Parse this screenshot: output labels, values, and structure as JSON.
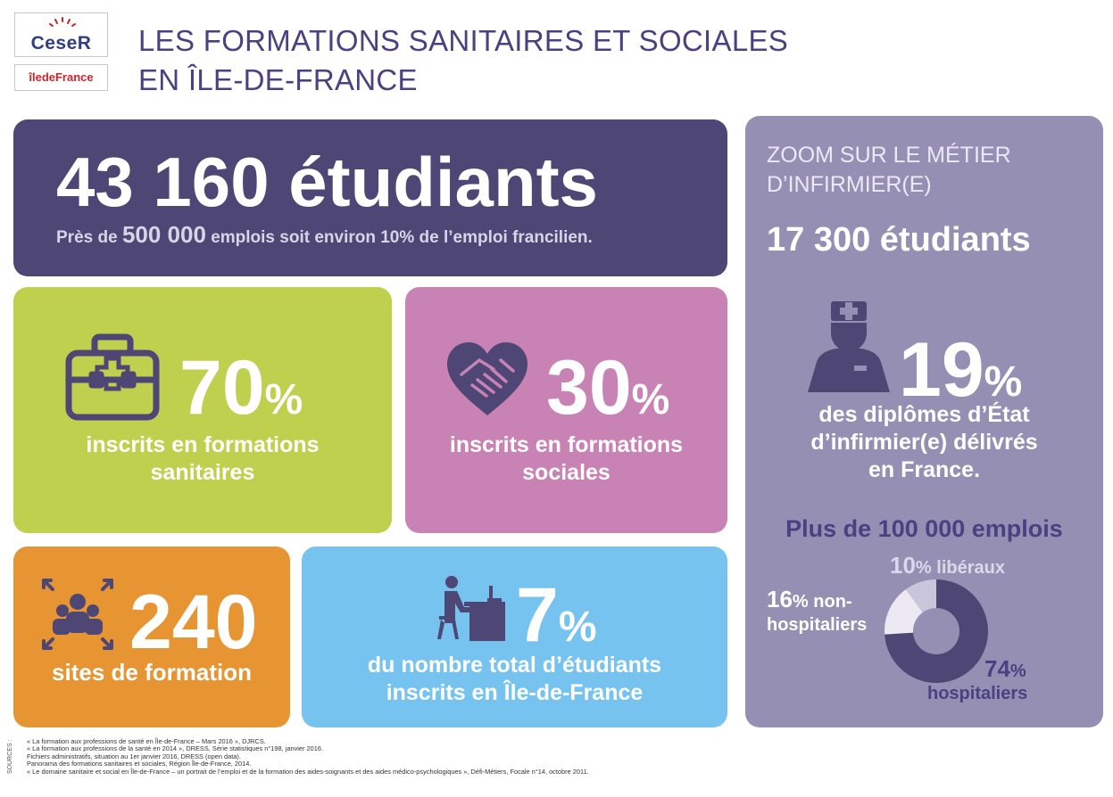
{
  "logos": {
    "ceser": "CeseR",
    "iledefrance": "îledeFrance"
  },
  "header": {
    "title_line1": "LES FORMATIONS SANITAIRES ET SOCIALES",
    "title_line2": "EN ÎLE-DE-FRANCE"
  },
  "top_card": {
    "headline": "43 160 étudiants",
    "sub_prefix": "Près de ",
    "sub_highlight": "500 000",
    "sub_suffix": " emplois soit environ 10% de l’emploi francilien."
  },
  "sanitaires": {
    "value": "70",
    "unit": "%",
    "label_line1": "inscrits en formations",
    "label_line2": "sanitaires",
    "icon": "medical-kit-icon"
  },
  "sociales": {
    "value": "30",
    "unit": "%",
    "label_line1": "inscrits en formations",
    "label_line2": "sociales",
    "icon": "heart-handshake-icon"
  },
  "sites": {
    "value": "240",
    "label": "sites de formation",
    "icon": "group-people-icon"
  },
  "total": {
    "value": "7",
    "unit": "%",
    "label_line1": "du nombre total d’étudiants",
    "label_line2": "inscrits en Île-de-France",
    "icon": "person-at-desk-icon"
  },
  "zoom": {
    "title_line1": "ZOOM SUR LE MÉTIER",
    "title_line2": "D’INFIRMIER(E)",
    "students": "17 300 étudiants",
    "pct_value": "19",
    "pct_unit": "%",
    "desc_line1": "des diplômes d’État",
    "desc_line2": "d’infirmier(e) délivrés",
    "desc_line3": "en France.",
    "employment": "Plus de 100 000 emplois",
    "icon": "nurse-icon"
  },
  "chart_data": {
    "type": "pie",
    "title": "Plus de 100 000 emplois",
    "slices": [
      {
        "label": "hospitaliers",
        "value": 74,
        "color": "#4e4674"
      },
      {
        "label": "non-hospitaliers",
        "value": 16,
        "color": "#ece9f3"
      },
      {
        "label": "libéraux",
        "value": 10,
        "color": "#c9c5db"
      }
    ]
  },
  "donut": {
    "lib_pct": "10",
    "lib_unit": "%",
    "lib_label": " libéraux",
    "non_pct": "16",
    "non_unit": "%",
    "non_label1": " non-",
    "non_label2": "hospitaliers",
    "hosp_pct": "74",
    "hosp_unit": "%",
    "hosp_label": "hospitaliers"
  },
  "sources": {
    "tag": "SOURCES :",
    "lines": [
      "« La formation aux professions de santé en Île-de-France – Mars 2016 », DJRCS.",
      "« La formation aux professions de la santé en 2014 », DRESS, Série statistiques n°198, janvier 2016.",
      "Fichiers administratifs, situation au 1er janvier 2016, DRESS (open data).",
      "Panorama des formations sanitaires et sociales, Région Île-de-France, 2014.",
      "« Le domaine sanitaire et social en Île-de-France – un portrait de l’emploi et de la formation des aides-soignants et des aides médico-psychologiques », Défi-Métiers, Focale n°14, octobre 2011."
    ]
  }
}
